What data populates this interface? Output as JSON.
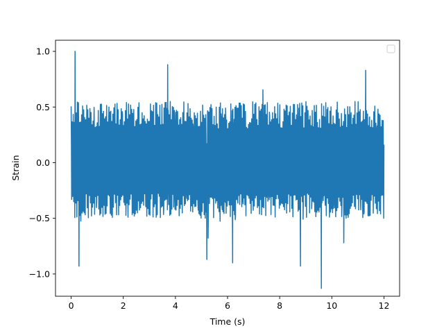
{
  "chart_data": {
    "type": "line",
    "title": "",
    "xlabel": "Time (s)",
    "ylabel": "Strain",
    "xlim": [
      -0.6,
      12.6
    ],
    "ylim": [
      -1.2,
      1.1
    ],
    "x_ticks": [
      0,
      2,
      4,
      6,
      8,
      10,
      12
    ],
    "x_tick_labels": [
      "0",
      "2",
      "4",
      "6",
      "8",
      "10",
      "12"
    ],
    "y_ticks": [
      -1.0,
      -0.5,
      0.0,
      0.5,
      1.0
    ],
    "y_tick_labels": [
      "−1.0",
      "−0.5",
      "0.0",
      "0.5",
      "1.0"
    ],
    "grid": false,
    "legend": {
      "placement": "top-right",
      "entries": []
    },
    "series": [
      {
        "color": "#1f77b4",
        "x_range": [
          0,
          12
        ],
        "point_count": 1200,
        "envelope": {
          "typical_max": 0.55,
          "typical_min": -0.5
        },
        "notable_values": [
          {
            "x": 0.15,
            "y": 1.0
          },
          {
            "x": 0.3,
            "y": -0.93
          },
          {
            "x": 3.7,
            "y": 0.88
          },
          {
            "x": 9.6,
            "y": -1.13
          },
          {
            "x": 11.3,
            "y": 0.83
          },
          {
            "x": 5.2,
            "y": -0.87
          },
          {
            "x": 6.2,
            "y": -0.9
          },
          {
            "x": 8.8,
            "y": -0.93
          }
        ]
      }
    ]
  }
}
